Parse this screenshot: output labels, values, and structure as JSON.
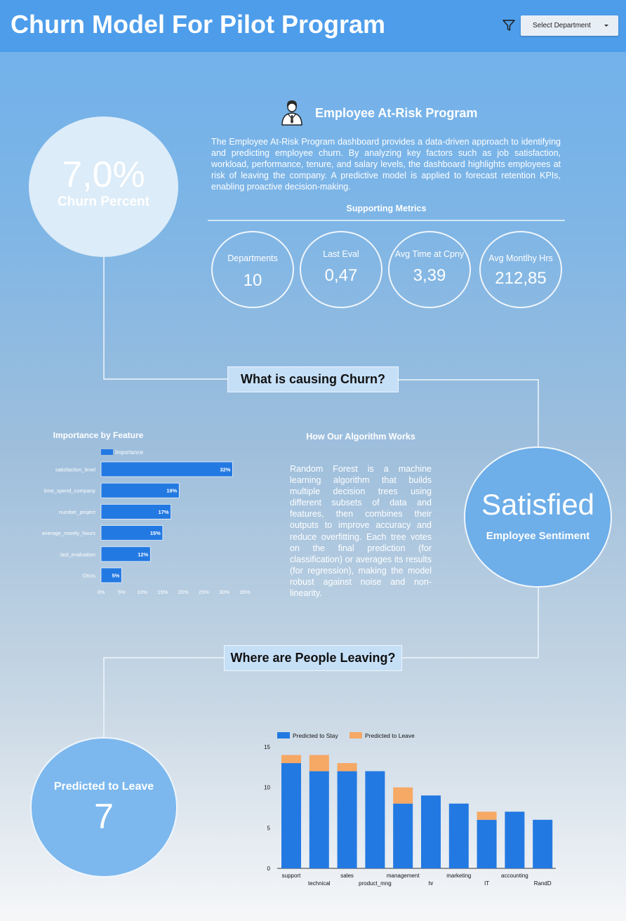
{
  "header": {
    "title": "Churn Model For Pilot Program",
    "filter_icon": "filter-icon",
    "select_department": "Select Department"
  },
  "churn": {
    "value": "7,0%",
    "label": "Churn Percent"
  },
  "program": {
    "icon": "employee-icon",
    "title": "Employee At-Risk Program",
    "description": "The Employee At-Risk Program dashboard provides a data-driven approach to identifying and predicting employee churn. By analyzing key factors such as job satisfaction, workload, performance, tenure, and salary levels, the dashboard highlights employees at risk of leaving the company. A predictive model is applied to forecast retention KPIs, enabling proactive decision-making."
  },
  "supporting": {
    "title": "Supporting Metrics",
    "metrics": [
      {
        "label": "Departments",
        "value": "10"
      },
      {
        "label": "Last Eval",
        "value": "0,47"
      },
      {
        "label": "Avg Time at Cpny",
        "value": "3,39"
      },
      {
        "label": "Avg Montlhy Hrs",
        "value": "212,85"
      }
    ]
  },
  "sections": {
    "causing": "What is causing Churn?",
    "leaving": "Where are People Leaving?"
  },
  "algorithm": {
    "title": "How Our Algorithm Works",
    "text": "Random Forest is a machine learning algorithm that builds multiple decision trees using different subsets of data and features, then combines their outputs to improve accuracy and reduce overfitting. Each tree votes on the final prediction (for classification) or averages its results (for regression), making the model robust against noise and non-linearity."
  },
  "sentiment": {
    "value": "Satisfied",
    "label": "Employee Sentiment"
  },
  "predicted_leave": {
    "label": "Predicted to Leave",
    "value": "7"
  },
  "colors": {
    "bar_blue": "#2379e2",
    "bar_orange": "#f6a865",
    "header_blue": "#4d9deb"
  },
  "chart_data": [
    {
      "type": "bar",
      "orientation": "horizontal",
      "title": "Importance by Feature",
      "legend": "Importance",
      "legend_position": "top-left",
      "categories": [
        "satisfaction_level",
        "time_spend_company",
        "number_project",
        "average_montly_hours",
        "last_evaluation",
        "Otros"
      ],
      "values": [
        32,
        19,
        17,
        15,
        12,
        5
      ],
      "data_labels": [
        "32%",
        "19%",
        "17%",
        "15%",
        "12%",
        "5%"
      ],
      "xticks": [
        "0%",
        "5%",
        "10%",
        "15%",
        "20%",
        "25%",
        "30%",
        "35%"
      ],
      "xlim": [
        0,
        35
      ]
    },
    {
      "type": "bar",
      "stacked": true,
      "legend_position": "top-left",
      "categories": [
        "support",
        "technical",
        "sales",
        "product_mng",
        "management",
        "hr",
        "marketing",
        "IT",
        "accounting",
        "RandD"
      ],
      "series": [
        {
          "name": "Predicted to Stay",
          "values": [
            13,
            12,
            12,
            12,
            8,
            9,
            8,
            6,
            7,
            6
          ]
        },
        {
          "name": "Predicted to Leave",
          "values": [
            1,
            2,
            1,
            0,
            2,
            0,
            0,
            1,
            0,
            0
          ]
        }
      ],
      "yticks": [
        "0",
        "5",
        "10",
        "15"
      ],
      "ylim": [
        0,
        15
      ]
    }
  ]
}
